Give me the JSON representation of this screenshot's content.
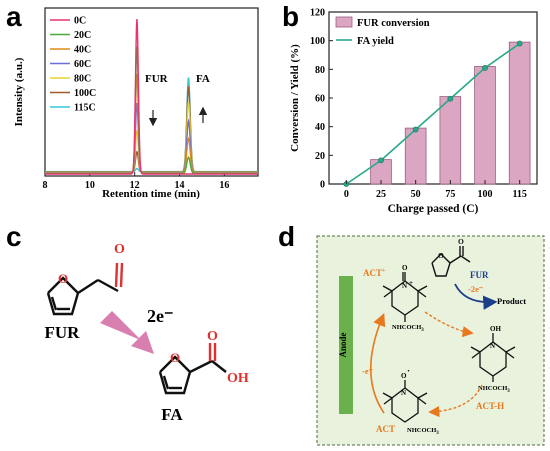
{
  "panels": {
    "a": "a",
    "b": "b",
    "c": "c",
    "d": "d"
  },
  "chart_data": [
    {
      "type": "line",
      "panel": "a",
      "xlabel": "Retention time (min)",
      "ylabel": "Intensity (a.u.)",
      "xlim": [
        8,
        17.5
      ],
      "xticks": [
        8,
        10,
        12,
        14,
        16
      ],
      "yticks_shown": false,
      "legend_position": "top-left",
      "peak_labels": {
        "fur": "FUR",
        "fa": "FA"
      },
      "fur_peak_x": 12.1,
      "fa_peak_x": 14.4,
      "series": [
        {
          "name": "0C",
          "color": "#e8336b",
          "fur": 1.0,
          "fa": 0.0
        },
        {
          "name": "20C",
          "color": "#4fa83d",
          "fur": 0.82,
          "fa": 0.17
        },
        {
          "name": "40C",
          "color": "#e08a1a",
          "fur": 0.64,
          "fa": 0.36
        },
        {
          "name": "60C",
          "color": "#6b6fd8",
          "fur": 0.45,
          "fa": 0.54
        },
        {
          "name": "80C",
          "color": "#e6d32b",
          "fur": 0.27,
          "fa": 0.73
        },
        {
          "name": "100C",
          "color": "#a05a2c",
          "fur": 0.13,
          "fa": 0.89
        },
        {
          "name": "115C",
          "color": "#36c7d6",
          "fur": 0.02,
          "fa": 0.98
        }
      ]
    },
    {
      "type": "bar",
      "panel": "b",
      "xlabel": "Charge passed (C)",
      "ylabel": "Conversion / Yield (%)",
      "ylim": [
        0,
        120
      ],
      "yticks": [
        0,
        20,
        40,
        60,
        80,
        100,
        120
      ],
      "categories": [
        "0",
        "25",
        "50",
        "75",
        "100",
        "115"
      ],
      "legend_position": "top-left",
      "series": [
        {
          "name": "FUR conversion",
          "kind": "bar",
          "color": "#dba6c2",
          "values": [
            null,
            17,
            39,
            61,
            82,
            99
          ]
        },
        {
          "name": "FA yield",
          "kind": "line",
          "color": "#2aa88a",
          "values": [
            0,
            16.5,
            38,
            59.5,
            81,
            98
          ]
        }
      ]
    }
  ],
  "scheme_c": {
    "fur_label": "FUR",
    "fa_label": "FA",
    "arrow_label": "2e⁻",
    "aldehyde_o": "O",
    "ring_o": "O",
    "acid_o": "O",
    "acid_oh": "OH"
  },
  "scheme_d": {
    "anode_label": "Anode",
    "fur_label": "FUR",
    "product_label": "Product",
    "electrons_top": "-2e⁻",
    "electrons_left": "-e⁻",
    "act_plus": "ACT",
    "act_plus_sup": "+",
    "act_h": "ACT-H",
    "act": "ACT",
    "nhcoch3": "NHCOCH",
    "sub3": "3",
    "o_label": "O",
    "oh_label": "OH",
    "n_label": "N",
    "n_plus": "+",
    "nh_label": "N",
    "o_dot": "O",
    "o_dot_mark": "·",
    "ald_o": "O",
    "ring_o": "O"
  }
}
